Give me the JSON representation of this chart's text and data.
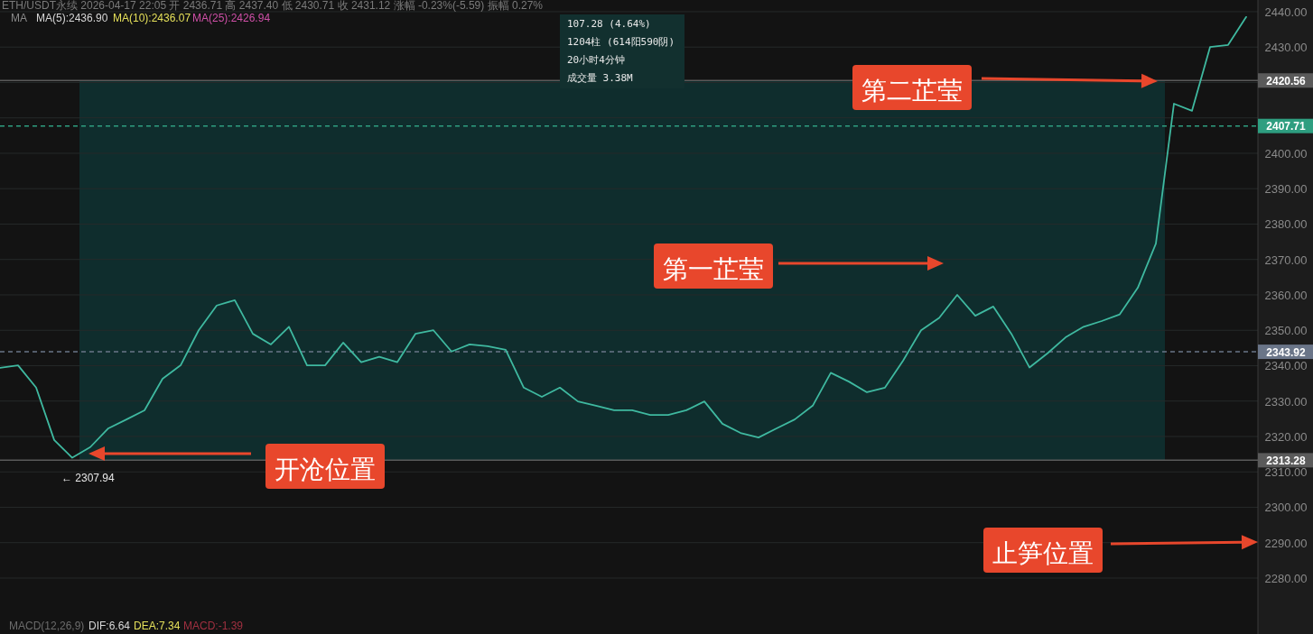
{
  "chart_data": {
    "type": "line",
    "categories": [
      null,
      null,
      null,
      null,
      null,
      null,
      null,
      null,
      null,
      null,
      null,
      null,
      null,
      null,
      null,
      null,
      null,
      null,
      null,
      null,
      null,
      null,
      null,
      null,
      null,
      null,
      null,
      null,
      null,
      null,
      null,
      null,
      null,
      null,
      null,
      null,
      null,
      null,
      null,
      null,
      null,
      null,
      null,
      null,
      null,
      null,
      null,
      null,
      null,
      null,
      null,
      null,
      null,
      null,
      null,
      null,
      null,
      null,
      null,
      null,
      null,
      null,
      null,
      null,
      null,
      null,
      null,
      null,
      null,
      null
    ],
    "series": [
      {
        "color": "#3fb9a0",
        "values": [
          2339.4,
          2340.1,
          2333.8,
          2319,
          2314,
          2317,
          2322.3,
          2324.8,
          2327.4,
          2336.3,
          2340.1,
          2350,
          2357,
          2358.5,
          2349,
          2346,
          2351,
          2340.1,
          2340.1,
          2346.5,
          2341,
          2342.5,
          2341,
          2349,
          2350,
          2344,
          2346,
          2345.5,
          2344.5,
          2333.8,
          2331.2,
          2333.8,
          2329.9,
          2328.7,
          2327.4,
          2327.4,
          2326.1,
          2326.1,
          2327.4,
          2329.9,
          2323.6,
          2321,
          2319.7,
          2322.3,
          2324.8,
          2328.7,
          2338,
          2335.5,
          2332.5,
          2333.8,
          2341.4,
          2350,
          2353.5,
          2360,
          2354.1,
          2356.7,
          2349,
          2339.5,
          2343.5,
          2348,
          2351,
          2352.6,
          2354.5,
          2362,
          2374.5,
          2414,
          2412,
          2430,
          2430.6,
          2438.5
        ]
      }
    ],
    "ylim": [
      2264.2,
      2443.3
    ],
    "yticks": [
      {
        "value": 2280,
        "label": "2280.00"
      },
      {
        "value": 2290,
        "label": "2290.00"
      },
      {
        "value": 2300,
        "label": "2300.00"
      },
      {
        "value": 2310,
        "label": "2310.00"
      },
      {
        "value": 2320,
        "label": "2320.00"
      },
      {
        "value": 2330,
        "label": "2330.00"
      },
      {
        "value": 2340,
        "label": "2340.00"
      },
      {
        "value": 2350,
        "label": "2350.00"
      },
      {
        "value": 2360,
        "label": "2360.00"
      },
      {
        "value": 2370,
        "label": "2370.00"
      },
      {
        "value": 2380,
        "label": "2380.00"
      },
      {
        "value": 2390,
        "label": "2390.00"
      },
      {
        "value": 2400,
        "label": "2400.00"
      },
      {
        "value": 2410,
        "label": null
      },
      {
        "value": 2420,
        "label": null
      },
      {
        "value": 2430,
        "label": "2430.00"
      },
      {
        "value": 2440,
        "label": "2440.00"
      }
    ],
    "grid": "y",
    "bands": [
      {
        "axis": "y",
        "from": 2313.28,
        "to": 2420.56,
        "color": "#0f2d2d"
      }
    ],
    "ref_lines": [
      {
        "axis": "y",
        "value": 2420.56,
        "label": "2420.56",
        "color": "#5a5a5a",
        "line_style": "solid"
      },
      {
        "axis": "y",
        "value": 2407.71,
        "label": "2407.71",
        "color": "#2e9e80",
        "line_style": "dashed"
      },
      {
        "axis": "y",
        "value": 2343.92,
        "label": "2343.92",
        "color": "#6a7588",
        "line_style": "dashed"
      },
      {
        "axis": "y",
        "value": 2313.28,
        "label": "2313.28",
        "color": "#5a5a5a",
        "line_style": "solid"
      }
    ],
    "annotations": [
      "ETH/USDT永续 2026-04-17 22:05 开 2436.71 高 2437.40 低 2430.71 收 2431.12 涨幅 -0.23%(-5.59) 振幅 0.27%",
      "MA",
      "MA(5):2436.90",
      "MA(10):2436.07",
      "MA(25):2426.94",
      "107.28 (4.64%)",
      "1204柱 (614阳590阴)",
      "20小时4分钟",
      "成交量 3.38M",
      "← 2307.94",
      "开沧位置",
      "第一芷莹",
      "第二芷莹",
      "止笋位置",
      "MACD(12,26,9)",
      "DIF:6.64",
      "DEA:7.34",
      "MACD:-1.39"
    ]
  }
}
